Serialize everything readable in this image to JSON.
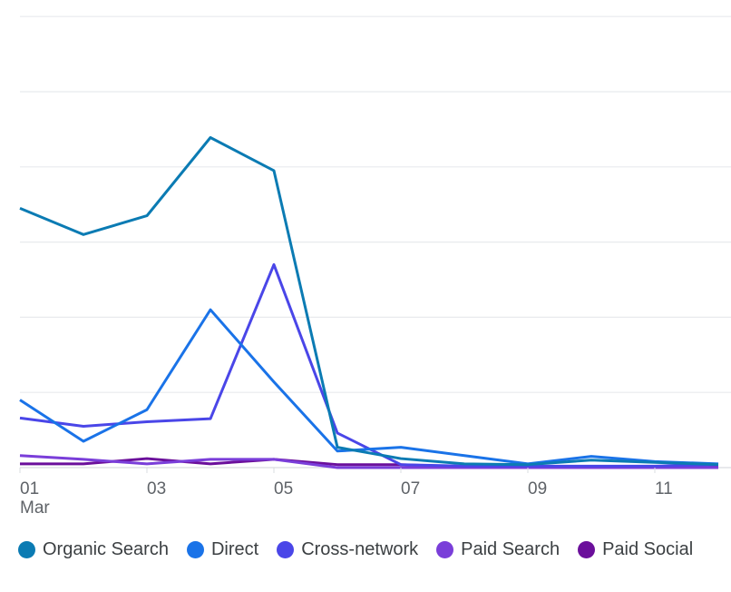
{
  "chart_data": {
    "type": "line",
    "title": "",
    "xlabel": "",
    "ylabel": "",
    "x": [
      1,
      2,
      3,
      4,
      5,
      6,
      7,
      8,
      9,
      10,
      11,
      12
    ],
    "x_ticks": [
      {
        "day": 1,
        "label": "01",
        "sublabel": "Mar"
      },
      {
        "day": 3,
        "label": "03"
      },
      {
        "day": 5,
        "label": "05"
      },
      {
        "day": 7,
        "label": "07"
      },
      {
        "day": 9,
        "label": "09"
      },
      {
        "day": 11,
        "label": "11"
      }
    ],
    "ylim": [
      0,
      6
    ],
    "y_gridlines": [
      0,
      1,
      2,
      3,
      4,
      5,
      6
    ],
    "grid": true,
    "legend_position": "bottom",
    "series": [
      {
        "name": "Organic Search",
        "color": "#0b7bb3",
        "values": [
          3.45,
          3.1,
          3.35,
          4.39,
          3.95,
          0.27,
          0.12,
          0.05,
          0.04,
          0.1,
          0.07,
          0.04
        ]
      },
      {
        "name": "Direct",
        "color": "#1a73e8",
        "values": [
          0.9,
          0.35,
          0.77,
          2.1,
          1.14,
          0.22,
          0.27,
          0.16,
          0.05,
          0.15,
          0.08,
          0.05
        ]
      },
      {
        "name": "Cross-network",
        "color": "#4a46e8",
        "values": [
          0.66,
          0.55,
          0.61,
          0.65,
          2.7,
          0.46,
          0.04,
          0.02,
          0.02,
          0.02,
          0.02,
          0.04
        ]
      },
      {
        "name": "Paid Search",
        "color": "#7a3ed9",
        "values": [
          0.16,
          0.11,
          0.05,
          0.11,
          0.11,
          0.0,
          0.0,
          0.0,
          0.0,
          0.0,
          0.0,
          0.0
        ]
      },
      {
        "name": "Paid Social",
        "color": "#6b0f9b",
        "values": [
          0.05,
          0.05,
          0.12,
          0.05,
          0.11,
          0.04,
          0.04,
          0.01,
          0.01,
          0.01,
          0.01,
          0.01
        ]
      }
    ]
  }
}
